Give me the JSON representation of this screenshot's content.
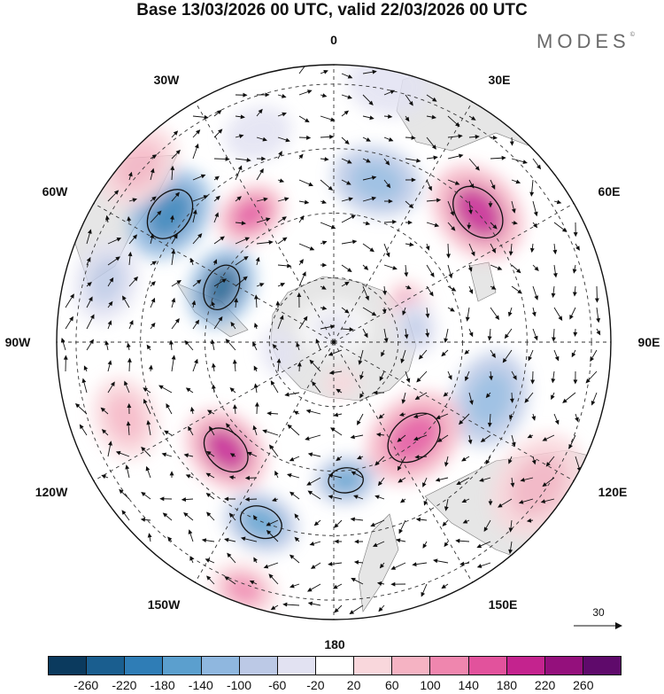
{
  "title": "Base 13/03/2026 00 UTC, valid 22/03/2026 00 UTC",
  "brand": "MODES",
  "brand_mark": "©",
  "longitude_labels": {
    "top": "0",
    "e30": "30E",
    "e60": "60E",
    "e90": "90E",
    "e120": "120E",
    "e150": "150E",
    "bottom": "180",
    "w150": "150W",
    "w120": "120W",
    "w90": "90W",
    "w60": "60W",
    "w30": "30W"
  },
  "vector_reference": "30",
  "colorbar": {
    "colors": [
      "#0b3a5e",
      "#1a5e8f",
      "#2f7db6",
      "#5b9fce",
      "#8fb7df",
      "#bcc9e6",
      "#e2e2f2",
      "#ffffff",
      "#f9d7dc",
      "#f5b3c3",
      "#ef86ae",
      "#e2529c",
      "#c4238e",
      "#94107c",
      "#5f0a6b"
    ],
    "ticks": [
      "-260",
      "-220",
      "-180",
      "-140",
      "-100",
      "-60",
      "-20",
      "20",
      "60",
      "100",
      "140",
      "180",
      "220",
      "260"
    ]
  },
  "anomaly_blobs": [
    {
      "lon": -52,
      "r": 0.75,
      "value": -220,
      "size": 0.14
    },
    {
      "lon": -64,
      "r": 0.45,
      "value": -240,
      "size": 0.12
    },
    {
      "lon": -75,
      "r": 0.85,
      "value": -100,
      "size": 0.12
    },
    {
      "lon": -33,
      "r": 0.55,
      "value": 140,
      "size": 0.1
    },
    {
      "lon": -48,
      "r": 0.95,
      "value": 60,
      "size": 0.13
    },
    {
      "lon": -20,
      "r": 0.8,
      "value": -60,
      "size": 0.1
    },
    {
      "lon": 15,
      "r": 0.6,
      "value": -120,
      "size": 0.13
    },
    {
      "lon": 12,
      "r": 0.95,
      "value": -60,
      "size": 0.12
    },
    {
      "lon": 48,
      "r": 0.7,
      "value": 180,
      "size": 0.15
    },
    {
      "lon": 65,
      "r": 0.3,
      "value": 100,
      "size": 0.08
    },
    {
      "lon": 110,
      "r": 0.6,
      "value": -120,
      "size": 0.14
    },
    {
      "lon": 80,
      "r": 0.3,
      "value": -80,
      "size": 0.08
    },
    {
      "lon": 140,
      "r": 0.45,
      "value": 160,
      "size": 0.15
    },
    {
      "lon": 125,
      "r": 0.9,
      "value": 60,
      "size": 0.16
    },
    {
      "lon": 175,
      "r": 0.5,
      "value": -160,
      "size": 0.09
    },
    {
      "lon": -158,
      "r": 0.7,
      "value": -180,
      "size": 0.11
    },
    {
      "lon": -135,
      "r": 0.55,
      "value": 180,
      "size": 0.13
    },
    {
      "lon": -160,
      "r": 0.95,
      "value": 100,
      "size": 0.1
    },
    {
      "lon": -110,
      "r": 0.8,
      "value": 80,
      "size": 0.12
    },
    {
      "lon": -100,
      "r": 0.2,
      "value": -60,
      "size": 0.07
    },
    {
      "lon": 0,
      "r": 0.05,
      "value": -30,
      "size": 0.1
    },
    {
      "lon": 170,
      "r": 0.15,
      "value": 40,
      "size": 0.05
    }
  ]
}
